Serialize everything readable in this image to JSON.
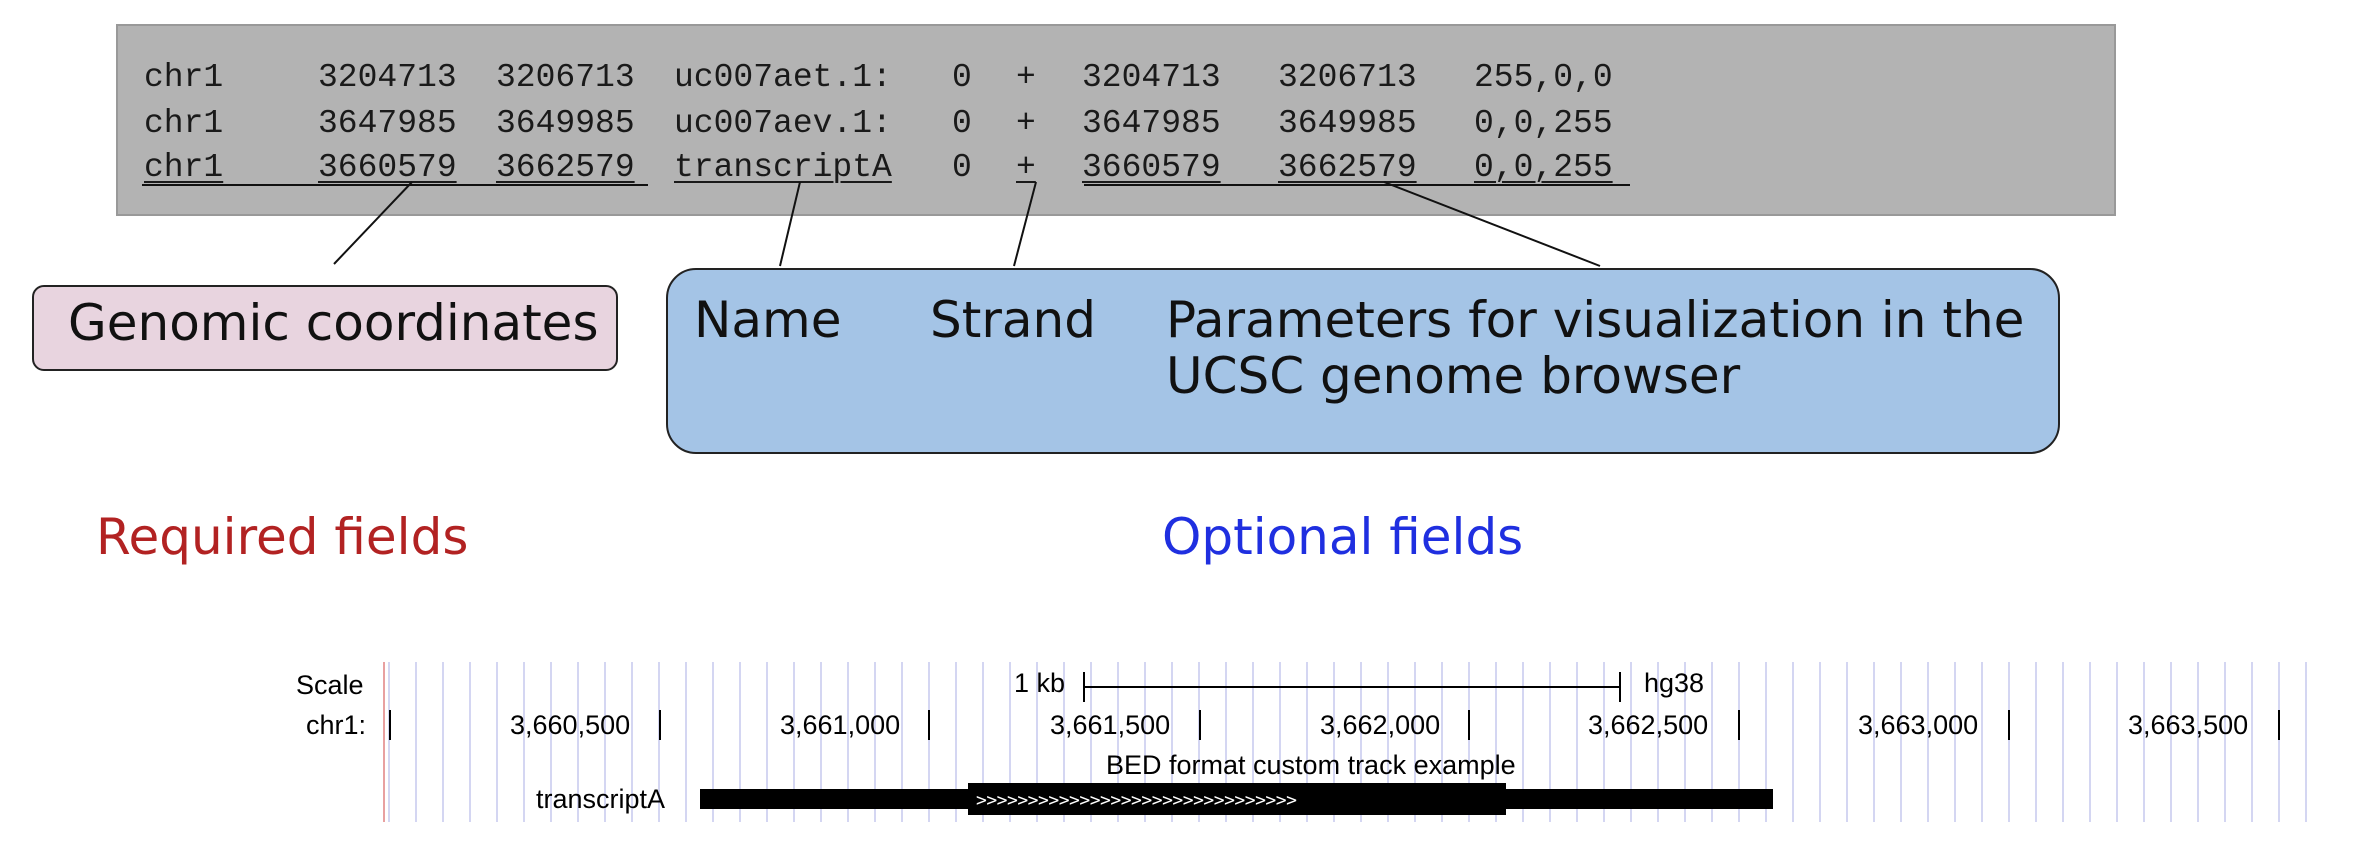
{
  "bed": {
    "rows": [
      {
        "chrom": "chr1",
        "start": "3204713",
        "end": "3206713",
        "name": "uc007aet.1:",
        "score": "0",
        "strand": "+",
        "thick_start": "3204713",
        "thick_end": "3206713",
        "rgb": "255,0,0"
      },
      {
        "chrom": "chr1",
        "start": "3647985",
        "end": "3649985",
        "name": "uc007aev.1:",
        "score": "0",
        "strand": "+",
        "thick_start": "3647985",
        "thick_end": "3649985",
        "rgb": "0,0,255"
      },
      {
        "chrom": "chr1",
        "start": "3660579",
        "end": "3662579",
        "name": "transcriptA",
        "score": "0",
        "strand": "+",
        "thick_start": "3660579",
        "thick_end": "3662579",
        "rgb": "0,0,255"
      }
    ]
  },
  "callouts": {
    "genomic": "Genomic coordinates",
    "name": "Name",
    "strand": "Strand",
    "params_line1": "Parameters for visualization in the",
    "params_line2": "UCSC genome browser"
  },
  "labels": {
    "required": "Required fields",
    "optional": "Optional fields",
    "required_color": "#b22222",
    "optional_color": "#1f2fe0"
  },
  "ucsc": {
    "scale_label": "Scale",
    "chrom_label": "chr1:",
    "scale_bar_label": "1 kb",
    "assembly": "hg38",
    "positions": [
      "3,660,500",
      "3,661,000",
      "3,661,500",
      "3,662,000",
      "3,662,500",
      "3,663,000",
      "3,663,500"
    ],
    "track_title": "BED format custom track example",
    "feature_name": "transcriptA",
    "strand_glyphs": ">>>>>>>>>>>>>>>>>>>>>>>>>>>>>>>"
  }
}
